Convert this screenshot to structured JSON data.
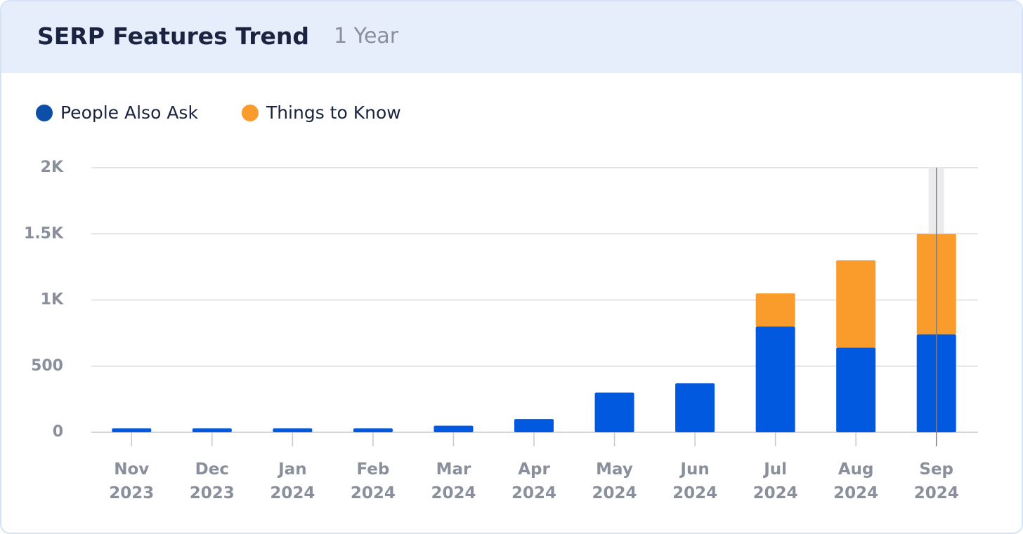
{
  "chart_data": {
    "type": "stacked-bar",
    "title": "SERP Features Trend",
    "subtitle": "1 Year",
    "categories": [
      "Nov 2023",
      "Dec 2023",
      "Jan 2024",
      "Feb 2024",
      "Mar 2024",
      "Apr 2024",
      "May 2024",
      "Jun 2024",
      "Jul 2024",
      "Aug 2024",
      "Sep 2024"
    ],
    "series": [
      {
        "name": "People Also Ask",
        "color": "#0059de",
        "legend_color": "#0b4fa8",
        "values": [
          30,
          30,
          30,
          30,
          50,
          100,
          300,
          370,
          800,
          640,
          740
        ]
      },
      {
        "name": "Things to Know",
        "color": "#fa9c2c",
        "legend_color": "#fa9c2c",
        "values": [
          0,
          0,
          0,
          0,
          0,
          0,
          0,
          0,
          250,
          660,
          760
        ]
      }
    ],
    "ylim": [
      0,
      2000
    ],
    "yticks": [
      0,
      500,
      {
        "value": 1000,
        "label": "1K"
      },
      {
        "value": 1500,
        "label": "1.5K"
      },
      {
        "value": 2000,
        "label": "2K"
      }
    ],
    "grid": true
  }
}
